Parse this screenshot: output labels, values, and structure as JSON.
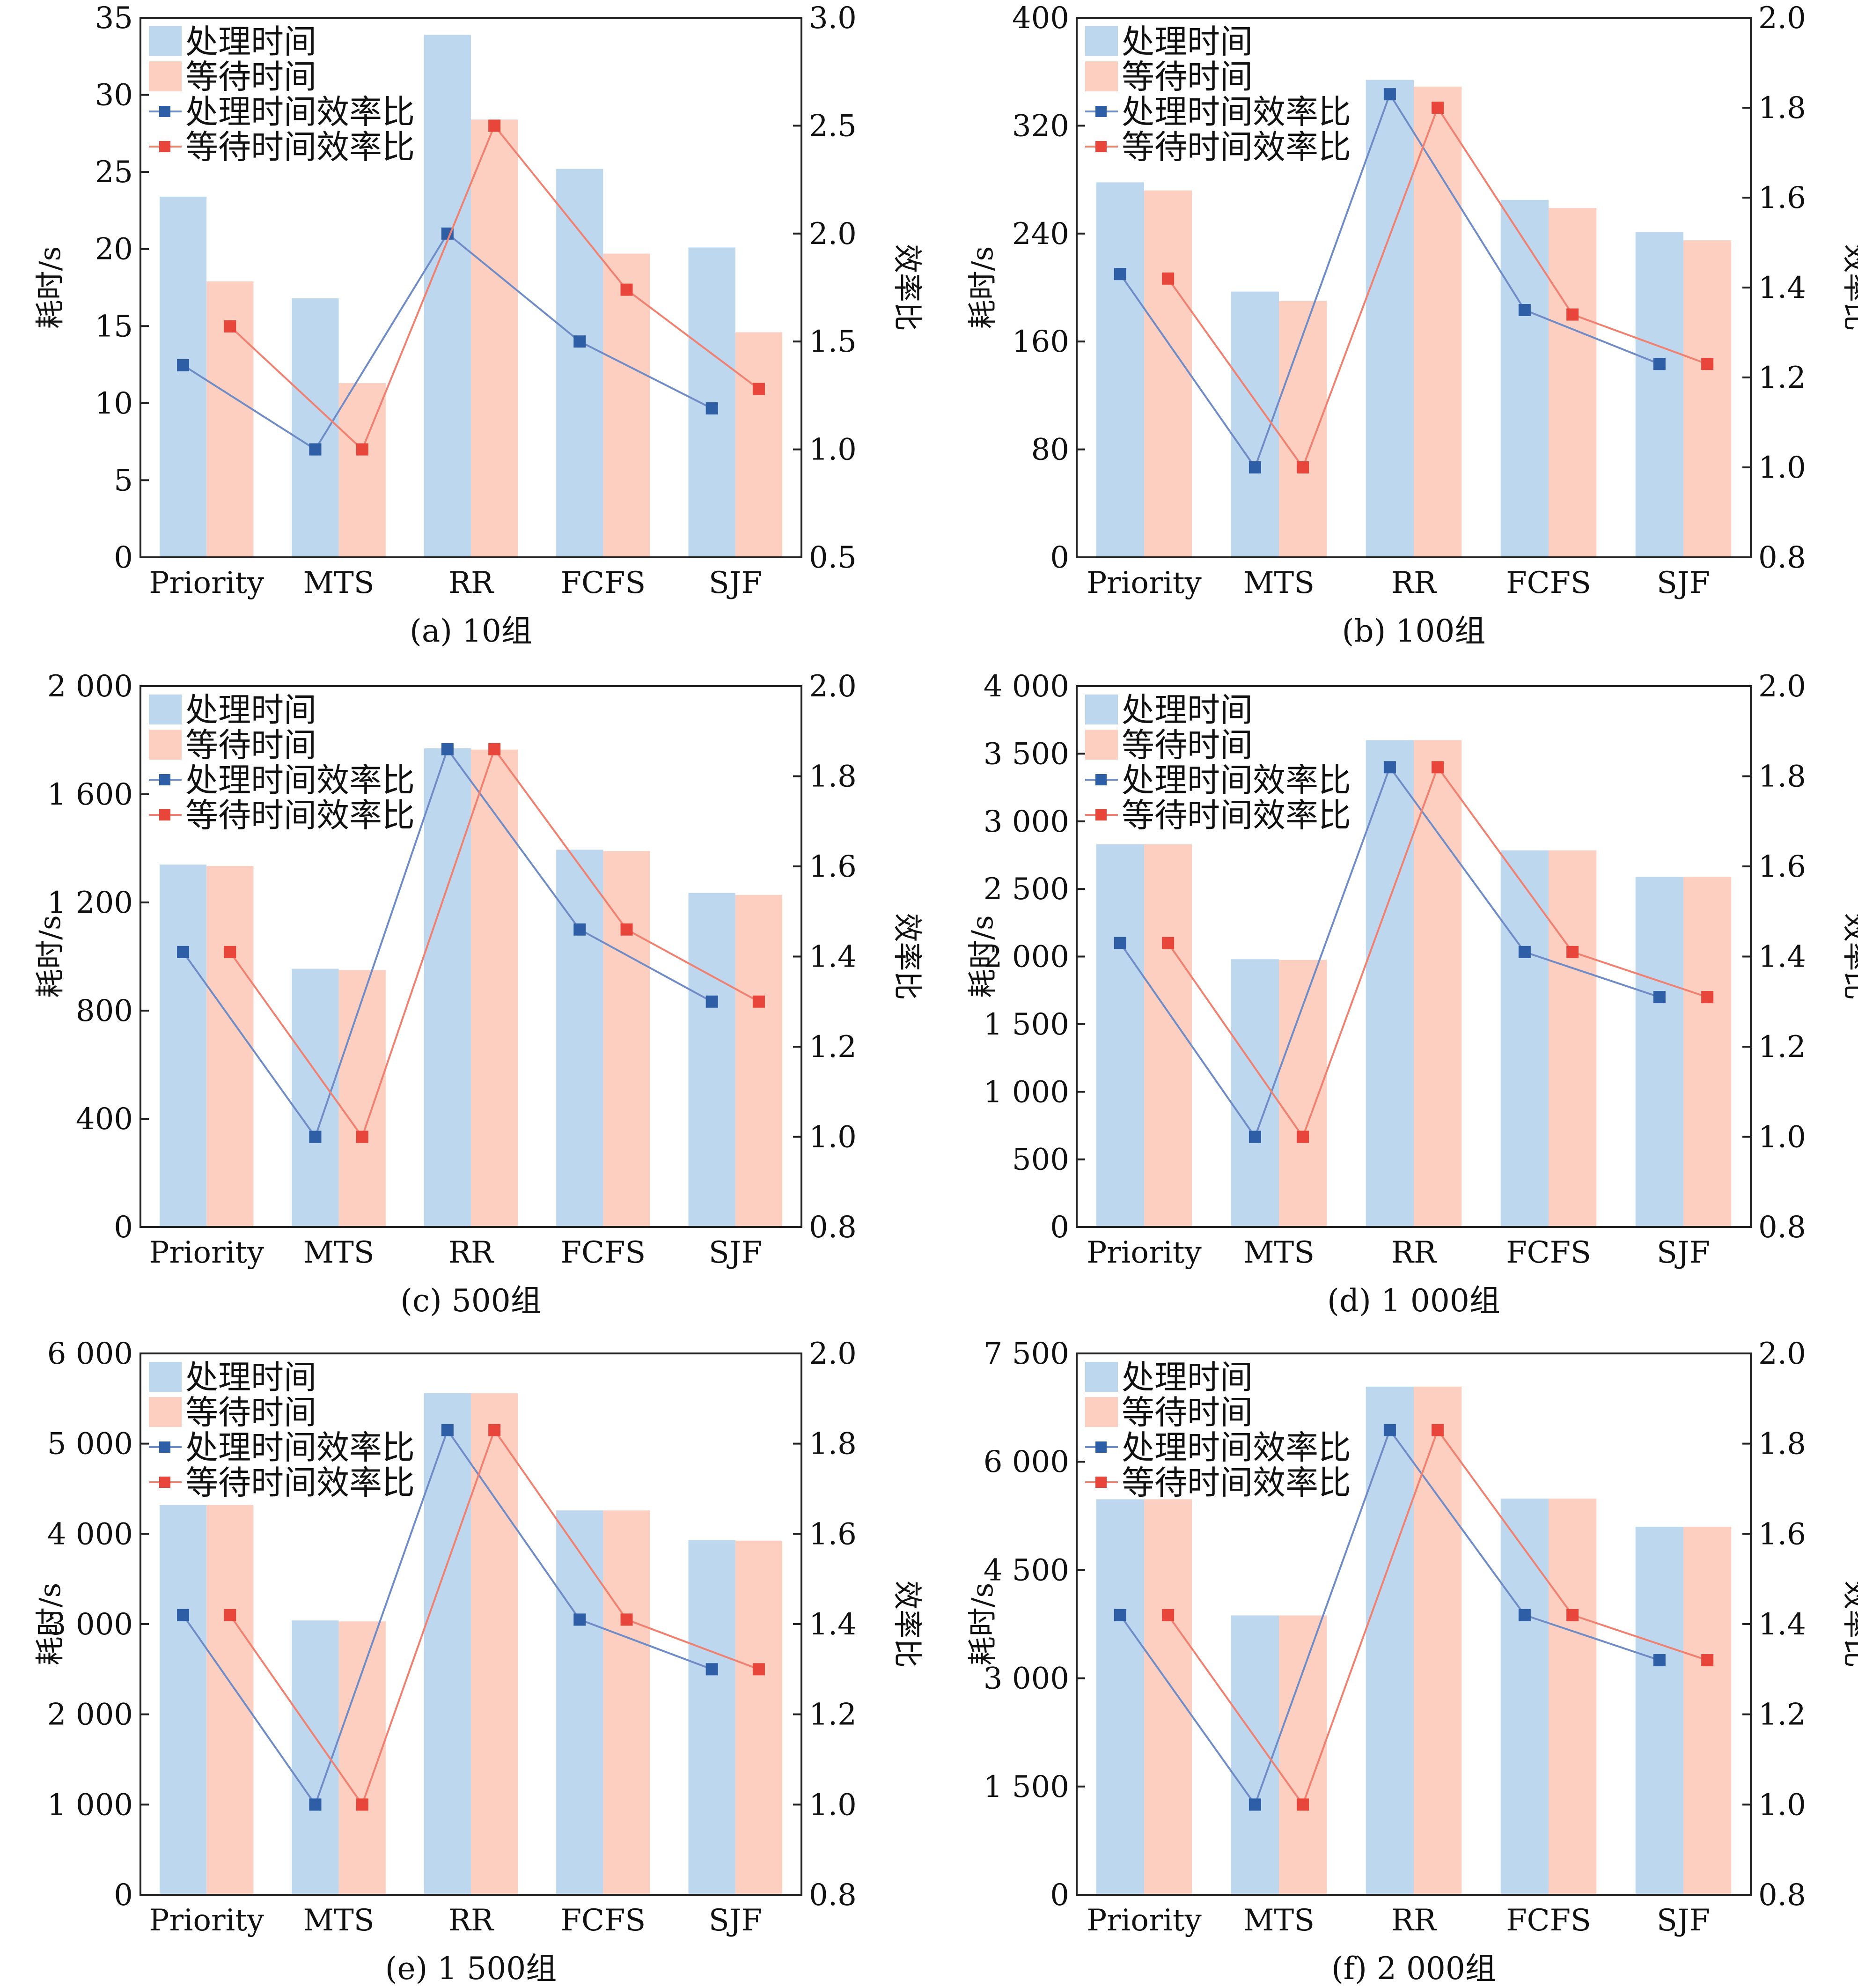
{
  "figure": {
    "colors": {
      "processing_bar": "#bdd7ee",
      "waiting_bar": "#fccfc0",
      "processing_line": "#6f8cc6",
      "waiting_line": "#f08070",
      "processing_marker": "#2d5ea6",
      "waiting_marker": "#e8463a"
    }
  },
  "chart_data": [
    {
      "type": "bar",
      "caption": "(a) 10组",
      "categories": [
        "Priority",
        "MTS",
        "RR",
        "FCFS",
        "SJF"
      ],
      "ylabel": "耗时/s",
      "y2label": "效率比",
      "ylim": [
        0,
        35
      ],
      "yticks": [
        0,
        5,
        10,
        15,
        20,
        25,
        30,
        35
      ],
      "ytick_labels": [
        "0",
        "5",
        "10",
        "15",
        "20",
        "25",
        "30",
        "35"
      ],
      "y2lim": [
        0.5,
        3.0
      ],
      "y2ticks": [
        0.5,
        1.0,
        1.5,
        2.0,
        2.5,
        3.0
      ],
      "y2tick_labels": [
        "0.5",
        "1.0",
        "1.5",
        "2.0",
        "2.5",
        "3.0"
      ],
      "series": [
        {
          "name": "处理时间",
          "kind": "bar",
          "axis": "left",
          "values": [
            23.4,
            16.8,
            33.9,
            25.2,
            20.1
          ]
        },
        {
          "name": "等待时间",
          "kind": "bar",
          "axis": "left",
          "values": [
            17.9,
            11.3,
            28.4,
            19.7,
            14.6
          ]
        },
        {
          "name": "处理时间效率比",
          "kind": "line",
          "axis": "right",
          "values": [
            1.39,
            1.0,
            2.0,
            1.5,
            1.19
          ]
        },
        {
          "name": "等待时间效率比",
          "kind": "line",
          "axis": "right",
          "values": [
            1.57,
            1.0,
            2.5,
            1.74,
            1.28
          ]
        }
      ]
    },
    {
      "type": "bar",
      "caption": "(b) 100组",
      "categories": [
        "Priority",
        "MTS",
        "RR",
        "FCFS",
        "SJF"
      ],
      "ylabel": "耗时/s",
      "y2label": "效率比",
      "ylim": [
        0,
        400
      ],
      "yticks": [
        0,
        80,
        160,
        240,
        320,
        400
      ],
      "ytick_labels": [
        "0",
        "80",
        "160",
        "240",
        "320",
        "400"
      ],
      "y2lim": [
        0.8,
        2.0
      ],
      "y2ticks": [
        0.8,
        1.0,
        1.2,
        1.4,
        1.6,
        1.8,
        2.0
      ],
      "y2tick_labels": [
        "0.8",
        "1.0",
        "1.2",
        "1.4",
        "1.6",
        "1.8",
        "2.0"
      ],
      "series": [
        {
          "name": "处理时间",
          "kind": "bar",
          "axis": "left",
          "values": [
            278,
            197,
            354,
            265,
            241
          ]
        },
        {
          "name": "等待时间",
          "kind": "bar",
          "axis": "left",
          "values": [
            272,
            190,
            349,
            259,
            235
          ]
        },
        {
          "name": "处理时间效率比",
          "kind": "line",
          "axis": "right",
          "values": [
            1.43,
            1.0,
            1.83,
            1.35,
            1.23
          ]
        },
        {
          "name": "等待时间效率比",
          "kind": "line",
          "axis": "right",
          "values": [
            1.42,
            1.0,
            1.8,
            1.34,
            1.23
          ]
        }
      ]
    },
    {
      "type": "bar",
      "caption": "(c) 500组",
      "categories": [
        "Priority",
        "MTS",
        "RR",
        "FCFS",
        "SJF"
      ],
      "ylabel": "耗时/s",
      "y2label": "效率比",
      "ylim": [
        0,
        2000
      ],
      "yticks": [
        0,
        400,
        800,
        1200,
        1600,
        2000
      ],
      "ytick_labels": [
        "0",
        "400",
        "800",
        "1 200",
        "1 600",
        "2 000"
      ],
      "y2lim": [
        0.8,
        2.0
      ],
      "y2ticks": [
        0.8,
        1.0,
        1.2,
        1.4,
        1.6,
        1.8,
        2.0
      ],
      "y2tick_labels": [
        "0.8",
        "1.0",
        "1.2",
        "1.4",
        "1.6",
        "1.8",
        "2.0"
      ],
      "series": [
        {
          "name": "处理时间",
          "kind": "bar",
          "axis": "left",
          "values": [
            1340,
            955,
            1770,
            1395,
            1235
          ]
        },
        {
          "name": "等待时间",
          "kind": "bar",
          "axis": "left",
          "values": [
            1335,
            950,
            1765,
            1390,
            1228
          ]
        },
        {
          "name": "处理时间效率比",
          "kind": "line",
          "axis": "right",
          "values": [
            1.41,
            1.0,
            1.86,
            1.46,
            1.3
          ]
        },
        {
          "name": "等待时间效率比",
          "kind": "line",
          "axis": "right",
          "values": [
            1.41,
            1.0,
            1.86,
            1.46,
            1.3
          ]
        }
      ]
    },
    {
      "type": "bar",
      "caption": "(d) 1 000组",
      "categories": [
        "Priority",
        "MTS",
        "RR",
        "FCFS",
        "SJF"
      ],
      "ylabel": "耗时/s",
      "y2label": "效率比",
      "ylim": [
        0,
        4000
      ],
      "yticks": [
        0,
        500,
        1000,
        1500,
        2000,
        2500,
        3000,
        3500,
        4000
      ],
      "ytick_labels": [
        "0",
        "500",
        "1 000",
        "1 500",
        "2 000",
        "2 500",
        "3 000",
        "3 500",
        "4 000"
      ],
      "y2lim": [
        0.8,
        2.0
      ],
      "y2ticks": [
        0.8,
        1.0,
        1.2,
        1.4,
        1.6,
        1.8,
        2.0
      ],
      "y2tick_labels": [
        "0.8",
        "1.0",
        "1.2",
        "1.4",
        "1.6",
        "1.8",
        "2.0"
      ],
      "series": [
        {
          "name": "处理时间",
          "kind": "bar",
          "axis": "left",
          "values": [
            2830,
            1980,
            3600,
            2785,
            2590
          ]
        },
        {
          "name": "等待时间",
          "kind": "bar",
          "axis": "left",
          "values": [
            2830,
            1975,
            3600,
            2785,
            2590
          ]
        },
        {
          "name": "处理时间效率比",
          "kind": "line",
          "axis": "right",
          "values": [
            1.43,
            1.0,
            1.82,
            1.41,
            1.31
          ]
        },
        {
          "name": "等待时间效率比",
          "kind": "line",
          "axis": "right",
          "values": [
            1.43,
            1.0,
            1.82,
            1.41,
            1.31
          ]
        }
      ]
    },
    {
      "type": "bar",
      "caption": "(e) 1 500组",
      "categories": [
        "Priority",
        "MTS",
        "RR",
        "FCFS",
        "SJF"
      ],
      "ylabel": "耗时/s",
      "y2label": "效率比",
      "ylim": [
        0,
        6000
      ],
      "yticks": [
        0,
        1000,
        2000,
        3000,
        4000,
        5000,
        6000
      ],
      "ytick_labels": [
        "0",
        "1 000",
        "2 000",
        "3 000",
        "4 000",
        "5 000",
        "6 000"
      ],
      "y2lim": [
        0.8,
        2.0
      ],
      "y2ticks": [
        0.8,
        1.0,
        1.2,
        1.4,
        1.6,
        1.8,
        2.0
      ],
      "y2tick_labels": [
        "0.8",
        "1.0",
        "1.2",
        "1.4",
        "1.6",
        "1.8",
        "2.0"
      ],
      "series": [
        {
          "name": "处理时间",
          "kind": "bar",
          "axis": "left",
          "values": [
            4320,
            3040,
            5560,
            4260,
            3930
          ]
        },
        {
          "name": "等待时间",
          "kind": "bar",
          "axis": "left",
          "values": [
            4320,
            3030,
            5560,
            4260,
            3925
          ]
        },
        {
          "name": "处理时间效率比",
          "kind": "line",
          "axis": "right",
          "values": [
            1.42,
            1.0,
            1.83,
            1.41,
            1.3
          ]
        },
        {
          "name": "等待时间效率比",
          "kind": "line",
          "axis": "right",
          "values": [
            1.42,
            1.0,
            1.83,
            1.41,
            1.3
          ]
        }
      ]
    },
    {
      "type": "bar",
      "caption": "(f) 2 000组",
      "categories": [
        "Priority",
        "MTS",
        "RR",
        "FCFS",
        "SJF"
      ],
      "ylabel": "耗时/s",
      "y2label": "效率比",
      "ylim": [
        0,
        7500
      ],
      "yticks": [
        0,
        1500,
        3000,
        4500,
        6000,
        7500
      ],
      "ytick_labels": [
        "0",
        "1 500",
        "3 000",
        "4 500",
        "6 000",
        "7 500"
      ],
      "y2lim": [
        0.8,
        2.0
      ],
      "y2ticks": [
        0.8,
        1.0,
        1.2,
        1.4,
        1.6,
        1.8,
        2.0
      ],
      "y2tick_labels": [
        "0.8",
        "1.0",
        "1.2",
        "1.4",
        "1.6",
        "1.8",
        "2.0"
      ],
      "series": [
        {
          "name": "处理时间",
          "kind": "bar",
          "axis": "left",
          "values": [
            5480,
            3870,
            7040,
            5490,
            5100
          ]
        },
        {
          "name": "等待时间",
          "kind": "bar",
          "axis": "left",
          "values": [
            5480,
            3870,
            7040,
            5490,
            5100
          ]
        },
        {
          "name": "处理时间效率比",
          "kind": "line",
          "axis": "right",
          "values": [
            1.42,
            1.0,
            1.83,
            1.42,
            1.32
          ]
        },
        {
          "name": "等待时间效率比",
          "kind": "line",
          "axis": "right",
          "values": [
            1.42,
            1.0,
            1.83,
            1.42,
            1.32
          ]
        }
      ]
    }
  ]
}
